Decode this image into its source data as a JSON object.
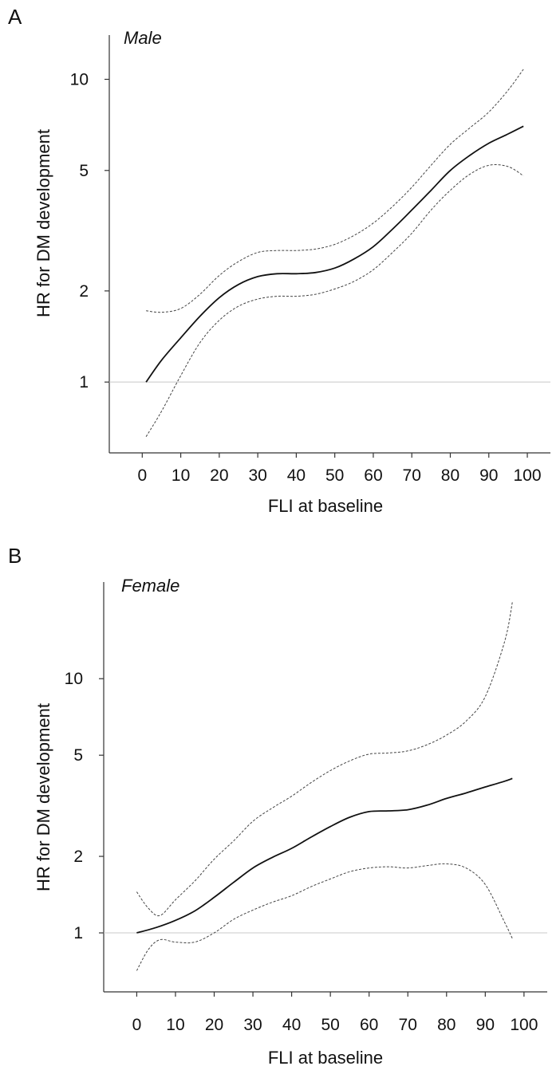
{
  "chart_data": [
    {
      "panel_label": "A",
      "type": "line",
      "title": "Male",
      "xlabel": "FLI at baseline",
      "ylabel": "HR for DM development",
      "y_scale": "log",
      "reference_line_y": 1,
      "xlim": [
        -4,
        106
      ],
      "ylim": [
        0.62,
        14
      ],
      "x_ticks": [
        0,
        10,
        20,
        30,
        40,
        50,
        60,
        70,
        80,
        90,
        100
      ],
      "y_ticks": [
        1,
        2,
        5,
        10
      ],
      "grid": false,
      "series": [
        {
          "role": "estimate",
          "style": "solid",
          "x": [
            1,
            5,
            10,
            15,
            20,
            25,
            30,
            35,
            40,
            45,
            50,
            55,
            60,
            65,
            70,
            75,
            80,
            85,
            90,
            95,
            99
          ],
          "y": [
            1.0,
            1.18,
            1.4,
            1.65,
            1.9,
            2.1,
            2.23,
            2.28,
            2.28,
            2.3,
            2.38,
            2.55,
            2.8,
            3.2,
            3.7,
            4.3,
            5.0,
            5.6,
            6.15,
            6.6,
            7.0
          ]
        },
        {
          "role": "upper_ci",
          "style": "dashed",
          "x": [
            1,
            5,
            10,
            15,
            20,
            25,
            30,
            35,
            40,
            45,
            50,
            55,
            60,
            65,
            70,
            75,
            80,
            85,
            90,
            95,
            99
          ],
          "y": [
            1.72,
            1.7,
            1.75,
            1.95,
            2.25,
            2.5,
            2.68,
            2.72,
            2.72,
            2.75,
            2.85,
            3.05,
            3.35,
            3.8,
            4.4,
            5.2,
            6.1,
            6.9,
            7.8,
            9.2,
            10.8
          ]
        },
        {
          "role": "lower_ci",
          "style": "dashed",
          "x": [
            1,
            5,
            10,
            15,
            20,
            25,
            30,
            35,
            40,
            45,
            50,
            55,
            60,
            65,
            70,
            75,
            80,
            85,
            90,
            95,
            99
          ],
          "y": [
            0.66,
            0.8,
            1.05,
            1.35,
            1.6,
            1.78,
            1.88,
            1.92,
            1.92,
            1.95,
            2.03,
            2.15,
            2.35,
            2.68,
            3.1,
            3.7,
            4.3,
            4.85,
            5.2,
            5.15,
            4.8
          ]
        }
      ]
    },
    {
      "panel_label": "B",
      "type": "line",
      "title": "Female",
      "xlabel": "FLI at baseline",
      "ylabel": "HR for DM development",
      "y_scale": "log",
      "reference_line_y": 1,
      "xlim": [
        -4,
        106
      ],
      "ylim": [
        0.63,
        24
      ],
      "x_ticks": [
        0,
        10,
        20,
        30,
        40,
        50,
        60,
        70,
        80,
        90,
        100
      ],
      "y_ticks": [
        1,
        2,
        5,
        10
      ],
      "grid": false,
      "series": [
        {
          "role": "estimate",
          "style": "solid",
          "x": [
            0,
            5,
            10,
            15,
            20,
            25,
            30,
            35,
            40,
            45,
            50,
            55,
            60,
            65,
            70,
            75,
            80,
            85,
            90,
            95,
            97
          ],
          "y": [
            1.0,
            1.05,
            1.12,
            1.22,
            1.38,
            1.58,
            1.8,
            1.98,
            2.15,
            2.38,
            2.62,
            2.85,
            3.0,
            3.02,
            3.05,
            3.18,
            3.38,
            3.55,
            3.75,
            3.95,
            4.05
          ]
        },
        {
          "role": "upper_ci",
          "style": "dashed",
          "x": [
            0,
            3,
            6,
            10,
            15,
            20,
            25,
            30,
            35,
            40,
            45,
            50,
            55,
            60,
            65,
            70,
            75,
            80,
            85,
            90,
            95,
            97
          ],
          "y": [
            1.45,
            1.25,
            1.17,
            1.35,
            1.6,
            1.95,
            2.3,
            2.75,
            3.1,
            3.45,
            3.9,
            4.35,
            4.75,
            5.05,
            5.1,
            5.2,
            5.5,
            6.0,
            6.8,
            8.5,
            14.0,
            20.0
          ]
        },
        {
          "role": "lower_ci",
          "style": "dashed",
          "x": [
            0,
            3,
            6,
            10,
            15,
            20,
            25,
            30,
            35,
            40,
            45,
            50,
            55,
            60,
            65,
            70,
            75,
            80,
            85,
            90,
            95,
            97
          ],
          "y": [
            0.71,
            0.86,
            0.94,
            0.92,
            0.92,
            1.0,
            1.13,
            1.23,
            1.32,
            1.4,
            1.52,
            1.63,
            1.74,
            1.8,
            1.82,
            1.8,
            1.84,
            1.87,
            1.8,
            1.55,
            1.1,
            0.95
          ]
        }
      ]
    }
  ]
}
